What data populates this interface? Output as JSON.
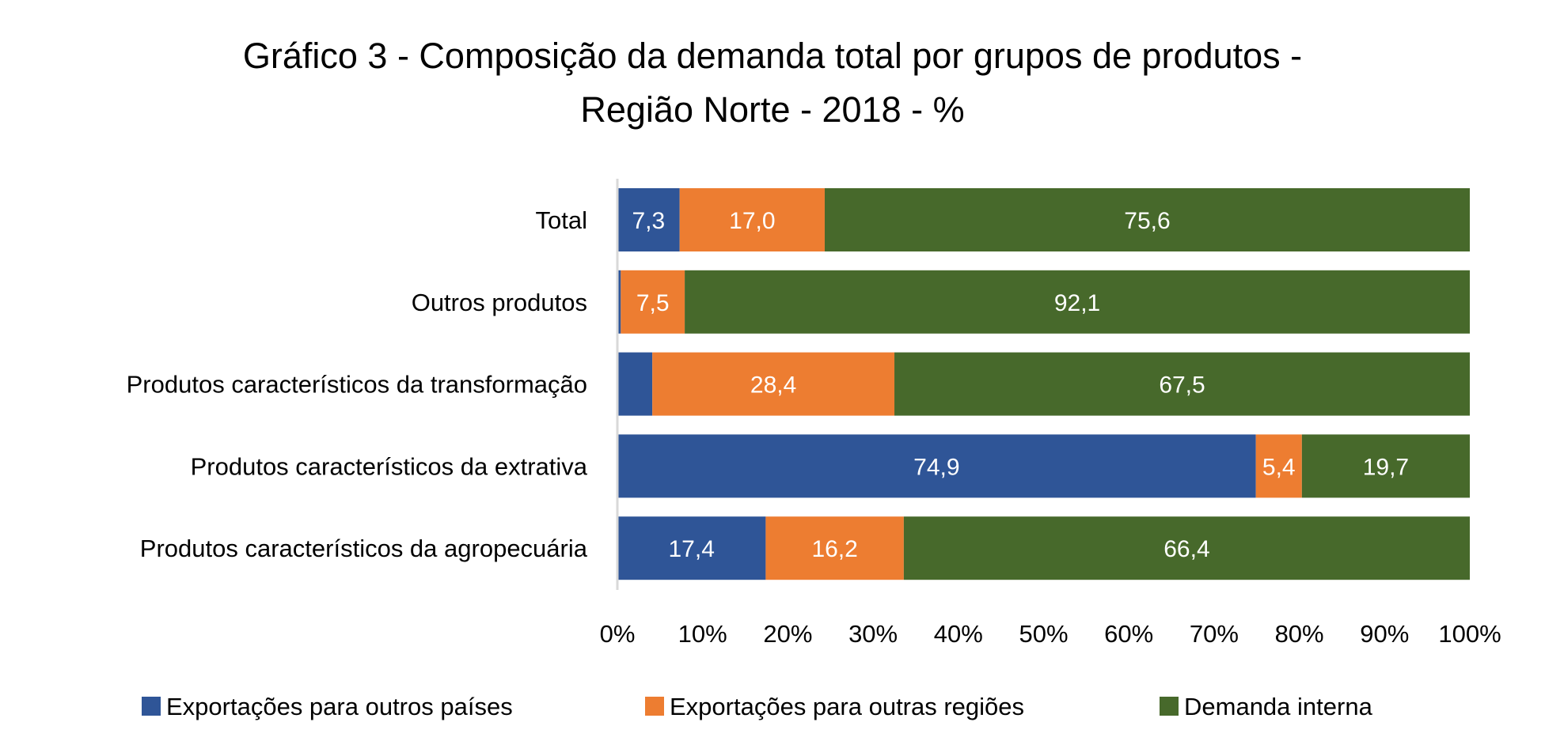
{
  "chart_data": {
    "type": "bar",
    "orientation": "horizontal",
    "stacked": "100%",
    "title": "Gráfico 3 - Composição da demanda total por grupos de produtos - Região Norte - 2018 - %",
    "title_lines": [
      "Gráfico 3 - Composição da demanda total por grupos de produtos -",
      "Região Norte - 2018 - %"
    ],
    "categories": [
      "Total",
      "Outros produtos",
      "Produtos característicos da transformação",
      "Produtos característicos da extrativa",
      "Produtos característicos da agropecuária"
    ],
    "series": [
      {
        "name": "Exportações para outros países",
        "color": "#2F5597",
        "values": [
          7.3,
          0.4,
          4.1,
          74.9,
          17.4
        ],
        "labels": [
          "7,3",
          "",
          "",
          "74,9",
          "17,4"
        ]
      },
      {
        "name": "Exportações para outras regiões",
        "color": "#ED7D31",
        "values": [
          17.0,
          7.5,
          28.4,
          5.4,
          16.2
        ],
        "labels": [
          "17,0",
          "7,5",
          "28,4",
          "5,4",
          "16,2"
        ]
      },
      {
        "name": "Demanda interna",
        "color": "#47692B",
        "values": [
          75.6,
          92.1,
          67.5,
          19.7,
          66.4
        ],
        "labels": [
          "75,6",
          "92,1",
          "67,5",
          "19,7",
          "66,4"
        ]
      }
    ],
    "xlim": [
      0,
      100
    ],
    "xticks": [
      "0%",
      "10%",
      "20%",
      "30%",
      "40%",
      "50%",
      "60%",
      "70%",
      "80%",
      "90%",
      "100%"
    ],
    "xlabel": "",
    "ylabel": "",
    "grid": false,
    "legend": "bottom"
  }
}
